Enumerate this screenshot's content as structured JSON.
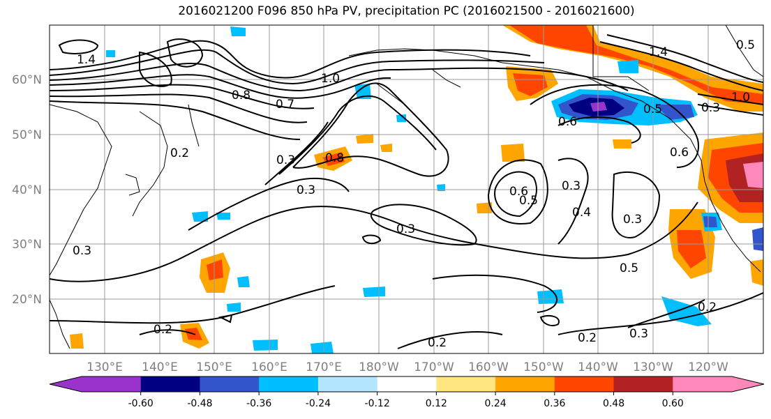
{
  "title": "2016021200 F096 850 hPa PV, precipitation PC (2016021500 - 2016021600)",
  "map": {
    "lat_labels": [
      "60°N",
      "50°N",
      "40°N",
      "30°N",
      "20°N"
    ],
    "lon_labels": [
      "130°E",
      "140°E",
      "150°E",
      "160°E",
      "170°E",
      "180°W",
      "170°W",
      "160°W",
      "150°W",
      "140°W",
      "130°W",
      "120°W"
    ],
    "contour_labels": [
      "1.4",
      "1.0",
      "0.8",
      "0.7",
      "0.3",
      "0.3",
      "0.2",
      "0.8",
      "0.3",
      "0.6",
      "0.5",
      "0.3",
      "0.4",
      "0.3",
      "0.5",
      "0.6",
      "0.6",
      "0.5",
      "0.3",
      "1.0",
      "0.3",
      "0.2",
      "0.2",
      "0.2",
      "0.3",
      "0.2",
      "1.4",
      "0.5"
    ]
  },
  "colorbar": {
    "colors": [
      "#9933cc",
      "#000080",
      "#3355cc",
      "#00bfff",
      "#b3e5ff",
      "#ffffff",
      "#ffe680",
      "#ffa500",
      "#ff4500",
      "#b22222",
      "#ff88bb"
    ],
    "tick_labels": [
      "-0.60",
      "-0.48",
      "-0.36",
      "-0.24",
      "-0.12",
      "0.12",
      "0.24",
      "0.36",
      "0.48",
      "0.60"
    ]
  }
}
